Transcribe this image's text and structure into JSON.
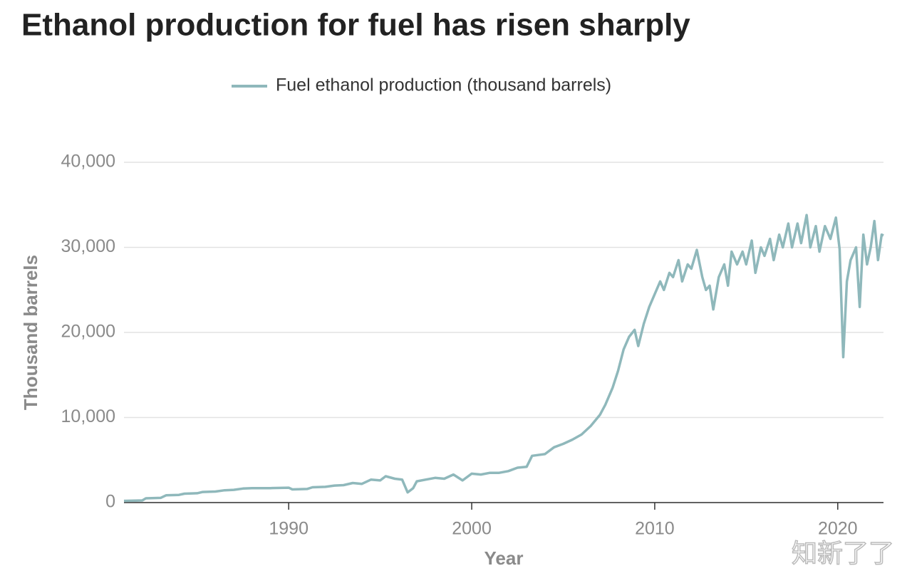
{
  "chart_data": {
    "type": "line",
    "title": "Ethanol production for fuel has risen sharply",
    "xlabel": "Year",
    "ylabel": "Thousand barrels",
    "watermark": "知新了了",
    "xlim": [
      1981,
      2022.5
    ],
    "ylim": [
      0,
      40000
    ],
    "xticks": [
      1990,
      2000,
      2010,
      2020
    ],
    "yticks": [
      0,
      {
        "value": 10000,
        "label": "10,000"
      },
      {
        "value": 20000,
        "label": "20,000"
      },
      {
        "value": 30000,
        "label": "30,000"
      },
      {
        "value": 40000,
        "label": "40,000"
      }
    ],
    "grid": true,
    "legend": "top",
    "x": [
      1981,
      1982,
      1982.2,
      1983,
      1983.3,
      1984,
      1984.3,
      1985,
      1985.3,
      1986,
      1986.5,
      1987,
      1987.5,
      1988,
      1989,
      1990,
      1990.2,
      1991,
      1991.3,
      1992,
      1992.5,
      1993,
      1993.5,
      1994,
      1994.5,
      1995,
      1995.3,
      1995.8,
      1996.2,
      1996.5,
      1996.8,
      1997,
      1997.5,
      1998,
      1998.5,
      1999,
      1999.5,
      2000,
      2000.5,
      2001,
      2001.5,
      2002,
      2002.5,
      2003,
      2003.3,
      2004,
      2004.5,
      2005,
      2005.5,
      2006,
      2006.5,
      2007,
      2007.3,
      2007.7,
      2008,
      2008.3,
      2008.6,
      2008.9,
      2009.1,
      2009.4,
      2009.7,
      2010,
      2010.3,
      2010.5,
      2010.8,
      2011,
      2011.3,
      2011.5,
      2011.8,
      2012,
      2012.3,
      2012.6,
      2012.8,
      2013,
      2013.2,
      2013.5,
      2013.8,
      2014,
      2014.2,
      2014.5,
      2014.8,
      2015,
      2015.3,
      2015.5,
      2015.8,
      2016,
      2016.3,
      2016.5,
      2016.8,
      2017,
      2017.3,
      2017.5,
      2017.8,
      2018,
      2018.3,
      2018.5,
      2018.8,
      2019,
      2019.3,
      2019.6,
      2019.9,
      2020.1,
      2020.3,
      2020.5,
      2020.7,
      2021,
      2021.2,
      2021.4,
      2021.6,
      2021.8,
      2022,
      2022.2,
      2022.4,
      2022.5
    ],
    "series": [
      {
        "name": "Fuel ethanol production (thousand barrels)",
        "color": "#8fb8bb",
        "values": [
          200,
          250,
          500,
          550,
          850,
          900,
          1050,
          1100,
          1250,
          1300,
          1450,
          1500,
          1650,
          1700,
          1700,
          1750,
          1550,
          1600,
          1800,
          1850,
          2000,
          2050,
          2300,
          2200,
          2700,
          2600,
          3100,
          2800,
          2700,
          1200,
          1700,
          2500,
          2700,
          2900,
          2800,
          3300,
          2600,
          3400,
          3300,
          3500,
          3500,
          3700,
          4100,
          4200,
          5500,
          5700,
          6500,
          6900,
          7400,
          8000,
          9000,
          10300,
          11500,
          13500,
          15500,
          18000,
          19500,
          20300,
          18400,
          21000,
          23000,
          24500,
          26000,
          25000,
          27000,
          26500,
          28500,
          26000,
          28000,
          27500,
          29700,
          26500,
          25000,
          25500,
          22700,
          26500,
          28000,
          25500,
          29500,
          28000,
          29500,
          28000,
          30800,
          27000,
          30000,
          29000,
          31000,
          28500,
          31500,
          30000,
          32800,
          30000,
          32800,
          30500,
          33800,
          30000,
          32500,
          29500,
          32500,
          31000,
          33500,
          29800,
          17100,
          26000,
          28500,
          30000,
          23000,
          31500,
          28000,
          30000,
          33100,
          28500,
          31500,
          31400
        ]
      }
    ]
  }
}
